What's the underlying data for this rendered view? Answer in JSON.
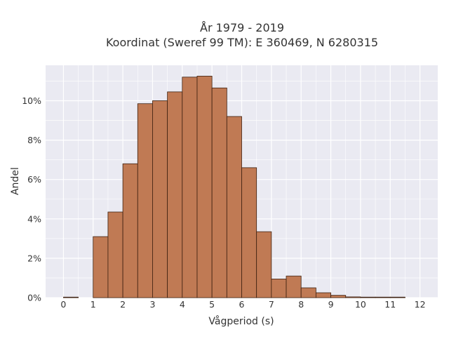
{
  "chart_data": {
    "type": "bar",
    "title": [
      "År 1979 - 2019",
      "Koordinat (Sweref 99 TM): E 360469, N 6280315"
    ],
    "xlabel": "Vågperiod (s)",
    "ylabel": "Andel",
    "bin_width": 0.5,
    "bins_start": [
      0,
      0.5,
      1,
      1.5,
      2,
      2.5,
      3,
      3.5,
      4,
      4.5,
      5,
      5.5,
      6,
      6.5,
      7,
      7.5,
      8,
      8.5,
      9,
      9.5,
      10,
      10.5,
      11,
      11.5
    ],
    "values": [
      0.0005,
      0,
      3.1,
      4.35,
      6.8,
      9.85,
      10.0,
      10.45,
      11.2,
      11.25,
      10.65,
      9.2,
      6.6,
      3.35,
      0.95,
      1.1,
      0.5,
      0.25,
      0.12,
      0.04,
      0.02,
      0.015,
      0.005,
      0
    ],
    "xticks": [
      "0",
      "1",
      "2",
      "3",
      "4",
      "5",
      "6",
      "7",
      "8",
      "9",
      "10",
      "11",
      "12"
    ],
    "yticks": [
      "0%",
      "2%",
      "4%",
      "6%",
      "8%",
      "10%"
    ],
    "xlim": [
      -0.6,
      12.6
    ],
    "ylim": [
      0,
      11.8
    ],
    "grid": true,
    "colors": {
      "bar_fill": "#c07a54",
      "bar_stroke": "#3d2010",
      "plot_bg": "#eaeaf2",
      "grid": "#ffffff"
    }
  }
}
